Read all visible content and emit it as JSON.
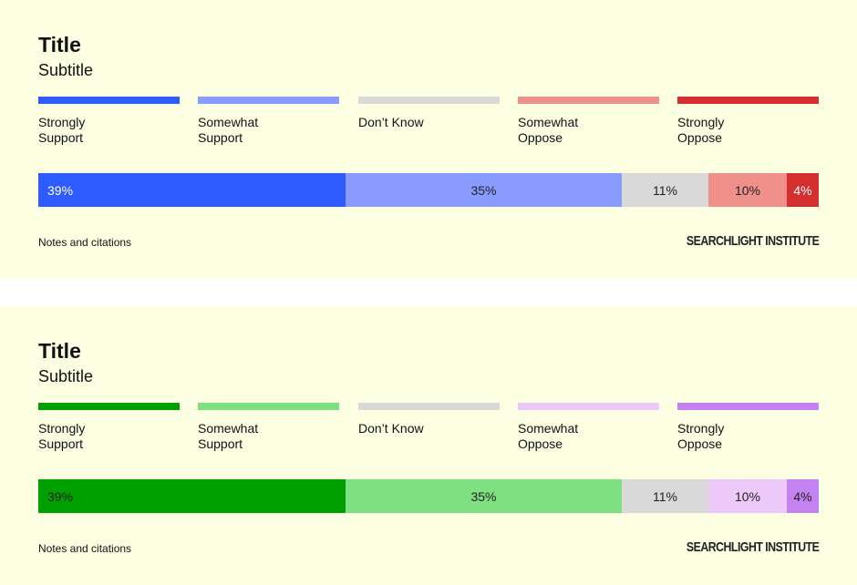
{
  "chart_data": [
    {
      "type": "bar",
      "orientation": "horizontal-stacked",
      "title": "Title",
      "subtitle": "Subtitle",
      "legend_placement": "top",
      "series": [
        {
          "name": "Strongly Support",
          "legend_lines": [
            "Strongly",
            "Support"
          ],
          "value": 39,
          "label": "39%",
          "color": "#2e5bff",
          "text_color": "#ffffff"
        },
        {
          "name": "Somewhat Support",
          "legend_lines": [
            "Somewhat",
            "Support"
          ],
          "value": 35,
          "label": "35%",
          "color": "#8a9bff",
          "text_color": "#222222"
        },
        {
          "name": "Don’t Know",
          "legend_lines": [
            "Don’t Know"
          ],
          "value": 11,
          "label": "11%",
          "color": "#d9d9d9",
          "text_color": "#222222"
        },
        {
          "name": "Somewhat Oppose",
          "legend_lines": [
            "Somewhat",
            "Oppose"
          ],
          "value": 10,
          "label": "10%",
          "color": "#ef908a",
          "text_color": "#222222"
        },
        {
          "name": "Strongly Oppose",
          "legend_lines": [
            "Strongly",
            "Oppose"
          ],
          "value": 4,
          "label": "4%",
          "color": "#d42e2e",
          "text_color": "#ffffff"
        }
      ],
      "notes": "Notes and citations",
      "brand": "SEARCHLIGHT INSTITUTE"
    },
    {
      "type": "bar",
      "orientation": "horizontal-stacked",
      "title": "Title",
      "subtitle": "Subtitle",
      "legend_placement": "top",
      "series": [
        {
          "name": "Strongly Support",
          "legend_lines": [
            "Strongly",
            "Support"
          ],
          "value": 39,
          "label": "39%",
          "color": "#00a000",
          "text_color": "#222222"
        },
        {
          "name": "Somewhat Support",
          "legend_lines": [
            "Somewhat",
            "Support"
          ],
          "value": 35,
          "label": "35%",
          "color": "#7fe082",
          "text_color": "#222222"
        },
        {
          "name": "Don’t Know",
          "legend_lines": [
            "Don’t Know"
          ],
          "value": 11,
          "label": "11%",
          "color": "#d9d9d9",
          "text_color": "#222222"
        },
        {
          "name": "Somewhat Oppose",
          "legend_lines": [
            "Somewhat",
            "Oppose"
          ],
          "value": 10,
          "label": "10%",
          "color": "#ecc9f8",
          "text_color": "#222222"
        },
        {
          "name": "Strongly Oppose",
          "legend_lines": [
            "Strongly",
            "Oppose"
          ],
          "value": 4,
          "label": "4%",
          "color": "#c481f0",
          "text_color": "#222222"
        }
      ],
      "notes": "Notes and citations",
      "brand": "SEARCHLIGHT INSTITUTE"
    }
  ]
}
